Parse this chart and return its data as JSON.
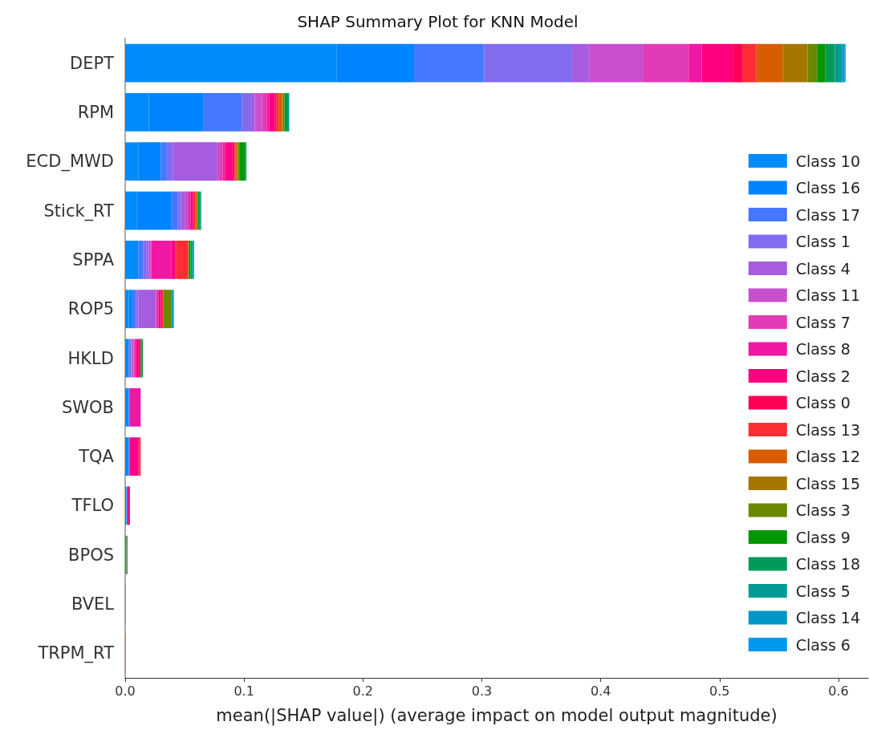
{
  "chart_data": {
    "type": "bar",
    "orientation": "horizontal",
    "stacked": true,
    "title": "SHAP Summary Plot for KNN Model",
    "xlabel": "mean(|SHAP value|) (average impact on model output magnitude)",
    "categories": [
      "DEPT",
      "RPM",
      "ECD_MWD",
      "Stick_RT",
      "SPPA",
      "ROP5",
      "HKLD",
      "SWOB",
      "TQA",
      "TFLO",
      "BPOS",
      "BVEL",
      "TRPM_RT"
    ],
    "xlim": [
      0,
      0.625
    ],
    "xticks": [
      {
        "value": 0,
        "label": "0.0"
      },
      0.1,
      0.2,
      0.3,
      0.4,
      0.5,
      0.6
    ],
    "grid": false,
    "legend": "right",
    "series": [
      {
        "name": "Class 10",
        "color": "#008bfb",
        "values": [
          0.178,
          0.02,
          0.011,
          0.01,
          0.011,
          0.003,
          0.002,
          0.002,
          0.002,
          0.001,
          0.001,
          0,
          0
        ]
      },
      {
        "name": "Class 16",
        "color": "#0084ff",
        "values": [
          0.065,
          0.046,
          0.019,
          0.029,
          0,
          0.003,
          0.001,
          0.001,
          0.001,
          0,
          0,
          0,
          0
        ]
      },
      {
        "name": "Class 17",
        "color": "#4578ff",
        "values": [
          0.059,
          0.032,
          0.005,
          0.005,
          0.004,
          0.003,
          0.001,
          0.001,
          0.001,
          0.001,
          0,
          0,
          0
        ]
      },
      {
        "name": "Class 1",
        "color": "#816cf0",
        "values": [
          0.074,
          0.008,
          0.005,
          0.003,
          0.003,
          0.002,
          0.001,
          0,
          0,
          0,
          0,
          0.0005,
          0
        ]
      },
      {
        "name": "Class 4",
        "color": "#a75be0",
        "values": [
          0.014,
          0.003,
          0.037,
          0.003,
          0.002,
          0.014,
          0.001,
          0,
          0,
          0,
          0,
          0,
          0.0005
        ]
      },
      {
        "name": "Class 11",
        "color": "#c850cf",
        "values": [
          0.046,
          0.006,
          0.002,
          0.002,
          0.002,
          0.001,
          0.001,
          0,
          0,
          0,
          0,
          0,
          0
        ]
      },
      {
        "name": "Class 7",
        "color": "#e23bb6",
        "values": [
          0.038,
          0.004,
          0.003,
          0.002,
          0,
          0.001,
          0.001,
          0,
          0,
          0,
          0,
          0,
          0
        ]
      },
      {
        "name": "Class 8",
        "color": "#f018a3",
        "values": [
          0.011,
          0.002,
          0.002,
          0.001,
          0.017,
          0.001,
          0.001,
          0.009,
          0,
          0,
          0,
          0,
          0
        ]
      },
      {
        "name": "Class 2",
        "color": "#ff0080",
        "values": [
          0.026,
          0.005,
          0.007,
          0.002,
          0.003,
          0.002,
          0.003,
          0,
          0.007,
          0.002,
          0,
          0,
          0
        ]
      },
      {
        "name": "Class 0",
        "color": "#ff0059",
        "values": [
          0.008,
          0.001,
          0.001,
          0.001,
          0.001,
          0.001,
          0.001,
          0,
          0.001,
          0,
          0,
          0,
          0
        ]
      },
      {
        "name": "Class 13",
        "color": "#fe2d34",
        "values": [
          0.012,
          0.002,
          0.001,
          0.001,
          0.01,
          0.001,
          0,
          0,
          0.001,
          0,
          0,
          0,
          0
        ]
      },
      {
        "name": "Class 12",
        "color": "#d75d00",
        "values": [
          0.022,
          0.003,
          0.001,
          0.001,
          0,
          0,
          0,
          0,
          0,
          0,
          0,
          0,
          0
        ]
      },
      {
        "name": "Class 15",
        "color": "#a67700",
        "values": [
          0.021,
          0.001,
          0.001,
          0.001,
          0,
          0,
          0,
          0,
          0,
          0,
          0,
          0,
          0
        ]
      },
      {
        "name": "Class 3",
        "color": "#6a8800",
        "values": [
          0.008,
          0.001,
          0.001,
          0,
          0.001,
          0.007,
          0,
          0,
          0,
          0,
          0.001,
          0,
          0
        ]
      },
      {
        "name": "Class 9",
        "color": "#009700",
        "values": [
          0.007,
          0.001,
          0.005,
          0.001,
          0.001,
          0,
          0.001,
          0,
          0,
          0,
          0,
          0,
          0
        ]
      },
      {
        "name": "Class 18",
        "color": "#009b58",
        "values": [
          0.008,
          0.002,
          0.001,
          0.001,
          0.001,
          0,
          0.001,
          0,
          0,
          0,
          0,
          0,
          0
        ]
      },
      {
        "name": "Class 5",
        "color": "#009b96",
        "values": [
          0.006,
          0.001,
          0,
          0.001,
          0.001,
          0.001,
          0,
          0,
          0,
          0,
          0,
          0,
          0
        ]
      },
      {
        "name": "Class 14",
        "color": "#0097c7",
        "values": [
          0.002,
          0,
          0,
          0,
          0.001,
          0.001,
          0,
          0,
          0,
          0,
          0,
          0,
          0
        ]
      },
      {
        "name": "Class 6",
        "color": "#0099ee",
        "values": [
          0.001,
          0,
          0,
          0,
          0,
          0,
          0,
          0,
          0,
          0,
          0,
          0,
          0
        ]
      }
    ]
  }
}
